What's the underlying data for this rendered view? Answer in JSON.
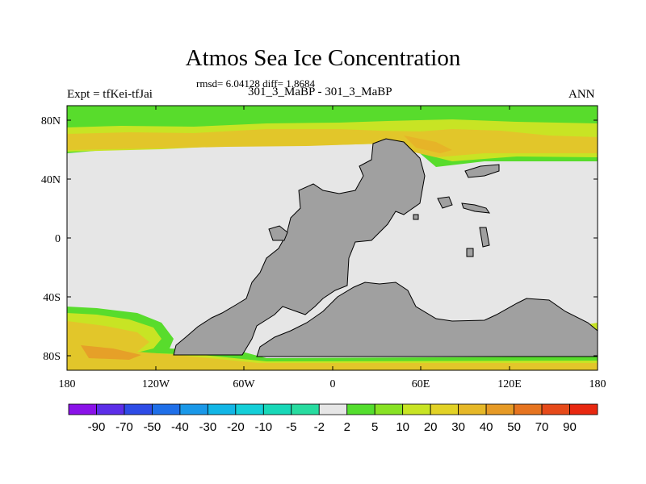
{
  "title": "Atmos Sea Ice Concentration",
  "stats_line": "rmsd= 6.04128 diff= 1.8684",
  "runs_line": "301_3_MaBP - 301_3_MaBP",
  "left_label": "Expt = tfKei-tfJai",
  "right_label": "ANN",
  "x_ticks": [
    "180",
    "120W",
    "60W",
    "0",
    "60E",
    "120E",
    "180"
  ],
  "y_ticks": [
    "80N",
    "40N",
    "0",
    "40S",
    "80S"
  ],
  "colorbar": {
    "levels": [
      "-90",
      "-70",
      "-50",
      "-40",
      "-30",
      "-20",
      "-10",
      "-5",
      "-2",
      "2",
      "5",
      "10",
      "20",
      "30",
      "40",
      "50",
      "70",
      "90"
    ],
    "colors": [
      "#8a12e8",
      "#5c2ee8",
      "#2e4ce6",
      "#1f6fe8",
      "#1a98e8",
      "#12b6e6",
      "#14cfd8",
      "#18d8b8",
      "#28dca0",
      "#e6e6e6",
      "#54de2e",
      "#88e224",
      "#c8e424",
      "#e2d226",
      "#e6b828",
      "#e69a26",
      "#e67420",
      "#e64a1a",
      "#e82810"
    ]
  },
  "legend_colors": {
    "ocean": "#e6e6e6",
    "land": "#a0a0a0"
  }
}
